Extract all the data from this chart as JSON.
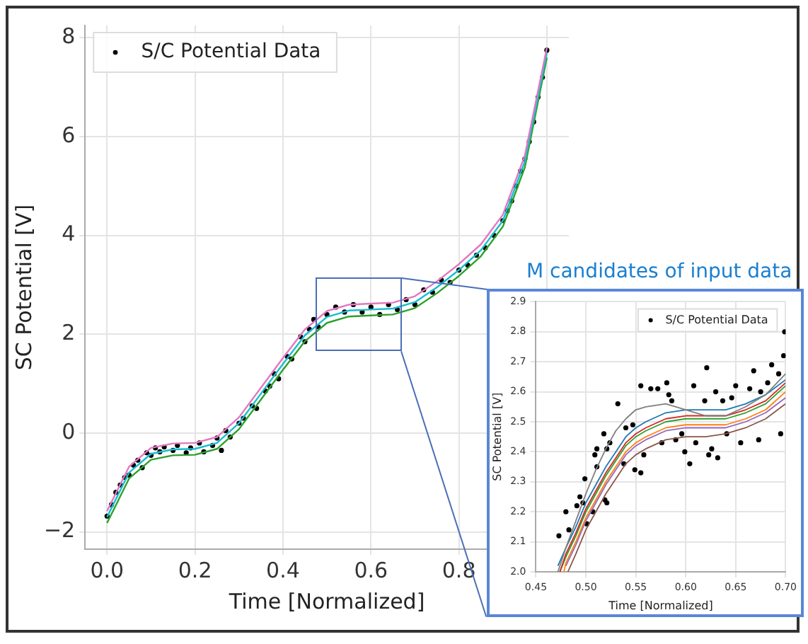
{
  "chart_data": [
    {
      "type": "scatter",
      "xlabel": "Time [Normalized]",
      "ylabel": "SC Potential [V]",
      "xlim": [
        -0.05,
        1.05
      ],
      "ylim": [
        -2.35,
        8.25
      ],
      "xticks": [
        {
          "value": 0,
          "label": "0.0"
        },
        {
          "value": 0.2,
          "label": "0.2"
        },
        {
          "value": 0.4,
          "label": "0.4"
        },
        {
          "value": 0.6,
          "label": "0.6"
        },
        {
          "value": 0.8,
          "label": "0.8"
        },
        {
          "value": 1.0,
          "label": null
        }
      ],
      "yticks": [
        {
          "value": -2,
          "label": "−2"
        },
        0,
        2,
        4,
        6,
        8
      ],
      "grid": true,
      "legend": "top left",
      "marker": "circle",
      "series": [
        {
          "name": "S/C Potential Data",
          "color": "#000000",
          "x": [
            0,
            0.01,
            0.02,
            0.03,
            0.04,
            0.05,
            0.06,
            0.07,
            0.08,
            0.09,
            0.1,
            0.11,
            0.12,
            0.13,
            0.15,
            0.16,
            0.18,
            0.19,
            0.21,
            0.22,
            0.24,
            0.25,
            0.26,
            0.27,
            0.28,
            0.3,
            0.31,
            0.33,
            0.34,
            0.36,
            0.37,
            0.38,
            0.39,
            0.41,
            0.42,
            0.44,
            0.45,
            0.46,
            0.47,
            0.48,
            0.5,
            0.52,
            0.54,
            0.56,
            0.58,
            0.6,
            0.62,
            0.64,
            0.66,
            0.68,
            0.7,
            0.72,
            0.74,
            0.76,
            0.78,
            0.8,
            0.82,
            0.84,
            0.86,
            0.88,
            0.9,
            0.91,
            0.92,
            0.93,
            0.94,
            0.95,
            0.96,
            0.97,
            0.98,
            0.99,
            1.0
          ],
          "values": [
            -1.68,
            -1.45,
            -1.2,
            -1.05,
            -0.9,
            -0.85,
            -0.65,
            -0.55,
            -0.7,
            -0.4,
            -0.45,
            -0.3,
            -0.38,
            -0.28,
            -0.35,
            -0.25,
            -0.4,
            -0.3,
            -0.2,
            -0.38,
            -0.25,
            -0.1,
            -0.35,
            0.05,
            -0.08,
            0.2,
            0.3,
            0.55,
            0.5,
            0.85,
            0.95,
            1.2,
            1.1,
            1.55,
            1.5,
            1.95,
            1.85,
            2.1,
            2.3,
            2.15,
            2.4,
            2.55,
            2.45,
            2.6,
            2.45,
            2.55,
            2.4,
            2.6,
            2.5,
            2.7,
            2.6,
            2.9,
            2.85,
            3.1,
            3.05,
            3.3,
            3.4,
            3.6,
            3.75,
            4.0,
            4.3,
            4.5,
            4.7,
            5.0,
            5.3,
            5.55,
            5.9,
            6.3,
            6.8,
            7.2,
            7.75
          ]
        },
        {
          "type": "line",
          "marker": "none",
          "color": "#e377c2",
          "x": [
            0,
            0.05,
            0.1,
            0.15,
            0.2,
            0.25,
            0.3,
            0.35,
            0.4,
            0.45,
            0.5,
            0.55,
            0.6,
            0.65,
            0.7,
            0.75,
            0.8,
            0.85,
            0.9,
            0.95,
            1.0
          ],
          "values": [
            -1.58,
            -0.68,
            -0.3,
            -0.21,
            -0.2,
            -0.08,
            0.32,
            0.92,
            1.52,
            2.1,
            2.47,
            2.6,
            2.62,
            2.64,
            2.77,
            3.07,
            3.42,
            3.82,
            4.42,
            5.62,
            7.8
          ]
        },
        {
          "type": "line",
          "marker": "none",
          "color": "#17becf",
          "x": [
            0,
            0.05,
            0.1,
            0.15,
            0.2,
            0.25,
            0.3,
            0.35,
            0.4,
            0.45,
            0.5,
            0.55,
            0.6,
            0.65,
            0.7,
            0.75,
            0.8,
            0.85,
            0.9,
            0.95,
            1.0
          ],
          "values": [
            -1.7,
            -0.8,
            -0.42,
            -0.33,
            -0.32,
            -0.2,
            0.2,
            0.8,
            1.4,
            1.98,
            2.35,
            2.48,
            2.5,
            2.52,
            2.65,
            2.95,
            3.3,
            3.7,
            4.3,
            5.5,
            7.7
          ]
        },
        {
          "type": "line",
          "marker": "none",
          "color": "#2ca02c",
          "x": [
            0,
            0.05,
            0.1,
            0.15,
            0.2,
            0.25,
            0.3,
            0.35,
            0.4,
            0.45,
            0.5,
            0.55,
            0.6,
            0.65,
            0.7,
            0.75,
            0.8,
            0.85,
            0.9,
            0.95,
            1.0
          ],
          "values": [
            -1.82,
            -0.92,
            -0.54,
            -0.45,
            -0.44,
            -0.32,
            0.08,
            0.68,
            1.28,
            1.86,
            2.23,
            2.36,
            2.38,
            2.4,
            2.53,
            2.83,
            3.18,
            3.58,
            4.18,
            5.38,
            7.6
          ]
        }
      ]
    },
    {
      "type": "scatter",
      "xlabel": "Time [Normalized]",
      "ylabel": "SC Potential [V]",
      "xlim": [
        0.45,
        0.7
      ],
      "ylim": [
        2.0,
        2.9
      ],
      "xticks": [
        {
          "value": 0.45,
          "label": "0.45"
        },
        {
          "value": 0.5,
          "label": "0.50"
        },
        {
          "value": 0.55,
          "label": "0.55"
        },
        {
          "value": 0.6,
          "label": "0.60"
        },
        {
          "value": 0.65,
          "label": "0.65"
        },
        {
          "value": 0.7,
          "label": "0.70"
        }
      ],
      "yticks": [
        {
          "value": 2.0,
          "label": "2.0"
        },
        2.1,
        2.2,
        2.3,
        2.4,
        2.5,
        2.6,
        2.7,
        2.8,
        2.9
      ],
      "grid": true,
      "legend": "top right",
      "marker": "circle",
      "annotations": [
        "M candidates of input data"
      ],
      "series": [
        {
          "name": "S/C Potential Data",
          "color": "#000000",
          "x": [
            0.473,
            0.48,
            0.483,
            0.491,
            0.494,
            0.497,
            0.499,
            0.501,
            0.507,
            0.509,
            0.511,
            0.511,
            0.518,
            0.519,
            0.521,
            0.521,
            0.524,
            0.532,
            0.538,
            0.54,
            0.547,
            0.549,
            0.555,
            0.555,
            0.558,
            0.565,
            0.572,
            0.576,
            0.581,
            0.583,
            0.586,
            0.59,
            0.596,
            0.599,
            0.604,
            0.608,
            0.61,
            0.619,
            0.621,
            0.623,
            0.626,
            0.63,
            0.632,
            0.637,
            0.641,
            0.646,
            0.65,
            0.655,
            0.664,
            0.668,
            0.673,
            0.675,
            0.682,
            0.686,
            0.693,
            0.695,
            0.698,
            0.699
          ],
          "values": [
            2.12,
            2.2,
            2.14,
            2.22,
            2.25,
            2.23,
            2.31,
            2.16,
            2.2,
            2.39,
            2.41,
            2.35,
            2.46,
            2.24,
            2.23,
            2.41,
            2.43,
            2.56,
            2.36,
            2.48,
            2.49,
            2.34,
            2.33,
            2.62,
            2.39,
            2.61,
            2.61,
            2.43,
            2.63,
            2.59,
            2.57,
            2.44,
            2.46,
            2.4,
            2.36,
            2.62,
            2.43,
            2.57,
            2.68,
            2.39,
            2.41,
            2.6,
            2.38,
            2.57,
            2.46,
            2.58,
            2.62,
            2.43,
            2.61,
            2.67,
            2.44,
            2.6,
            2.63,
            2.69,
            2.66,
            2.46,
            2.72,
            2.8
          ]
        },
        {
          "type": "line",
          "marker": "none",
          "color": "#7f7f7f",
          "x": [
            0.472,
            0.48,
            0.49,
            0.5,
            0.51,
            0.52,
            0.53,
            0.54,
            0.55,
            0.56,
            0.58,
            0.6,
            0.62,
            0.64,
            0.66,
            0.68,
            0.7
          ],
          "values": [
            2.0,
            2.08,
            2.17,
            2.26,
            2.34,
            2.41,
            2.47,
            2.51,
            2.54,
            2.55,
            2.56,
            2.54,
            2.52,
            2.52,
            2.55,
            2.59,
            2.66
          ]
        },
        {
          "type": "line",
          "marker": "none",
          "color": "#1f77b4",
          "x": [
            0.472,
            0.48,
            0.49,
            0.5,
            0.51,
            0.52,
            0.53,
            0.54,
            0.55,
            0.56,
            0.58,
            0.6,
            0.62,
            0.64,
            0.66,
            0.68,
            0.7
          ],
          "values": [
            2.02,
            2.08,
            2.15,
            2.23,
            2.29,
            2.35,
            2.4,
            2.45,
            2.48,
            2.5,
            2.53,
            2.54,
            2.54,
            2.54,
            2.56,
            2.59,
            2.64
          ]
        },
        {
          "type": "line",
          "marker": "none",
          "color": "#d62728",
          "x": [
            0.474,
            0.48,
            0.49,
            0.5,
            0.51,
            0.52,
            0.53,
            0.54,
            0.55,
            0.56,
            0.58,
            0.6,
            0.62,
            0.64,
            0.66,
            0.68,
            0.7
          ],
          "values": [
            2.0,
            2.06,
            2.13,
            2.21,
            2.27,
            2.33,
            2.38,
            2.43,
            2.46,
            2.48,
            2.51,
            2.52,
            2.52,
            2.52,
            2.54,
            2.57,
            2.63
          ]
        },
        {
          "type": "line",
          "marker": "none",
          "color": "#2ca02c",
          "x": [
            0.474,
            0.48,
            0.49,
            0.5,
            0.51,
            0.52,
            0.53,
            0.54,
            0.55,
            0.56,
            0.58,
            0.6,
            0.62,
            0.64,
            0.66,
            0.68,
            0.7
          ],
          "values": [
            2.0,
            2.05,
            2.12,
            2.2,
            2.26,
            2.32,
            2.37,
            2.42,
            2.45,
            2.47,
            2.5,
            2.51,
            2.51,
            2.51,
            2.53,
            2.56,
            2.62
          ]
        },
        {
          "type": "line",
          "marker": "none",
          "color": "#ff7f0e",
          "x": [
            0.478,
            0.48,
            0.49,
            0.5,
            0.51,
            0.52,
            0.53,
            0.54,
            0.55,
            0.56,
            0.58,
            0.6,
            0.62,
            0.64,
            0.66,
            0.68,
            0.7
          ],
          "values": [
            2.0,
            2.03,
            2.1,
            2.18,
            2.24,
            2.3,
            2.35,
            2.4,
            2.43,
            2.45,
            2.48,
            2.49,
            2.49,
            2.49,
            2.51,
            2.54,
            2.6
          ]
        },
        {
          "type": "line",
          "marker": "none",
          "color": "#9467bd",
          "x": [
            0.48,
            0.49,
            0.5,
            0.51,
            0.52,
            0.53,
            0.54,
            0.55,
            0.56,
            0.58,
            0.6,
            0.62,
            0.64,
            0.66,
            0.68,
            0.7
          ],
          "values": [
            2.02,
            2.09,
            2.17,
            2.23,
            2.29,
            2.34,
            2.39,
            2.42,
            2.44,
            2.47,
            2.48,
            2.48,
            2.48,
            2.5,
            2.53,
            2.58
          ]
        },
        {
          "type": "line",
          "marker": "none",
          "color": "#8c564b",
          "x": [
            0.482,
            0.49,
            0.5,
            0.51,
            0.52,
            0.53,
            0.54,
            0.55,
            0.56,
            0.58,
            0.6,
            0.62,
            0.64,
            0.66,
            0.68,
            0.7
          ],
          "values": [
            2.0,
            2.06,
            2.14,
            2.2,
            2.26,
            2.31,
            2.36,
            2.39,
            2.41,
            2.44,
            2.45,
            2.45,
            2.46,
            2.48,
            2.51,
            2.56
          ]
        }
      ]
    }
  ]
}
